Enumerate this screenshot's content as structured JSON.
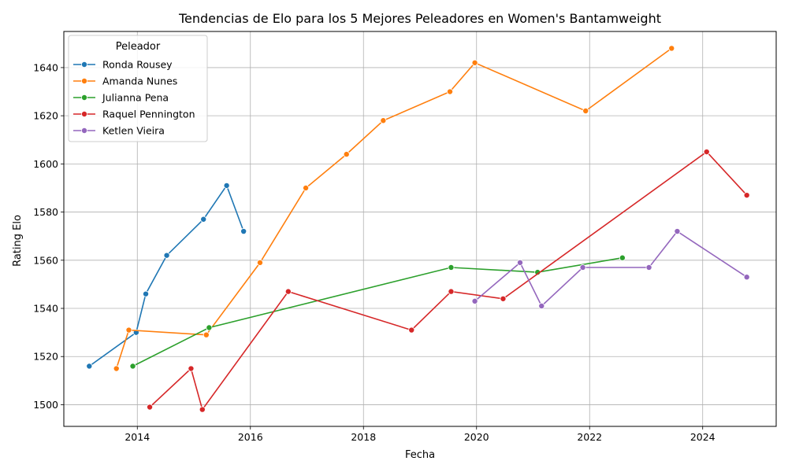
{
  "chart_data": {
    "type": "line",
    "title": "Tendencias de Elo para los 5 Mejores Peleadores en Women's Bantamweight",
    "xlabel": "Fecha",
    "ylabel": "Rating Elo",
    "xlim": [
      2012.7,
      2025.3
    ],
    "ylim": [
      1491,
      1655
    ],
    "xticks": [
      2014,
      2016,
      2018,
      2020,
      2022,
      2024
    ],
    "yticks": [
      1500,
      1520,
      1540,
      1560,
      1580,
      1600,
      1620,
      1640
    ],
    "grid": true,
    "legend": {
      "title": "Peleador",
      "position": "top-left"
    },
    "series": [
      {
        "name": "Ronda Rousey",
        "color": "#1f77b4",
        "points": [
          [
            2013.15,
            1516
          ],
          [
            2013.98,
            1530
          ],
          [
            2014.15,
            1546
          ],
          [
            2014.52,
            1562
          ],
          [
            2015.17,
            1577
          ],
          [
            2015.58,
            1591
          ],
          [
            2015.88,
            1572
          ]
        ]
      },
      {
        "name": "Amanda Nunes",
        "color": "#ff7f0e",
        "points": [
          [
            2013.63,
            1515
          ],
          [
            2013.85,
            1531
          ],
          [
            2015.22,
            1529
          ],
          [
            2016.17,
            1559
          ],
          [
            2016.98,
            1590
          ],
          [
            2017.7,
            1604
          ],
          [
            2018.35,
            1618
          ],
          [
            2019.53,
            1630
          ],
          [
            2019.97,
            1642
          ],
          [
            2021.93,
            1622
          ],
          [
            2023.45,
            1648
          ]
        ]
      },
      {
        "name": "Julianna Pena",
        "color": "#2ca02c",
        "points": [
          [
            2013.92,
            1516
          ],
          [
            2015.27,
            1532
          ],
          [
            2019.55,
            1557
          ],
          [
            2021.08,
            1555
          ],
          [
            2022.58,
            1561
          ]
        ]
      },
      {
        "name": "Raquel Pennington",
        "color": "#d62728",
        "points": [
          [
            2014.22,
            1499
          ],
          [
            2014.95,
            1515
          ],
          [
            2015.15,
            1498
          ],
          [
            2016.67,
            1547
          ],
          [
            2018.85,
            1531
          ],
          [
            2019.55,
            1547
          ],
          [
            2020.47,
            1544
          ],
          [
            2024.07,
            1605
          ],
          [
            2024.78,
            1587
          ]
        ]
      },
      {
        "name": "Ketlen Vieira",
        "color": "#9467bd",
        "points": [
          [
            2019.97,
            1543
          ],
          [
            2020.77,
            1559
          ],
          [
            2021.15,
            1541
          ],
          [
            2021.88,
            1557
          ],
          [
            2023.05,
            1557
          ],
          [
            2023.55,
            1572
          ],
          [
            2024.78,
            1553
          ]
        ]
      }
    ]
  }
}
